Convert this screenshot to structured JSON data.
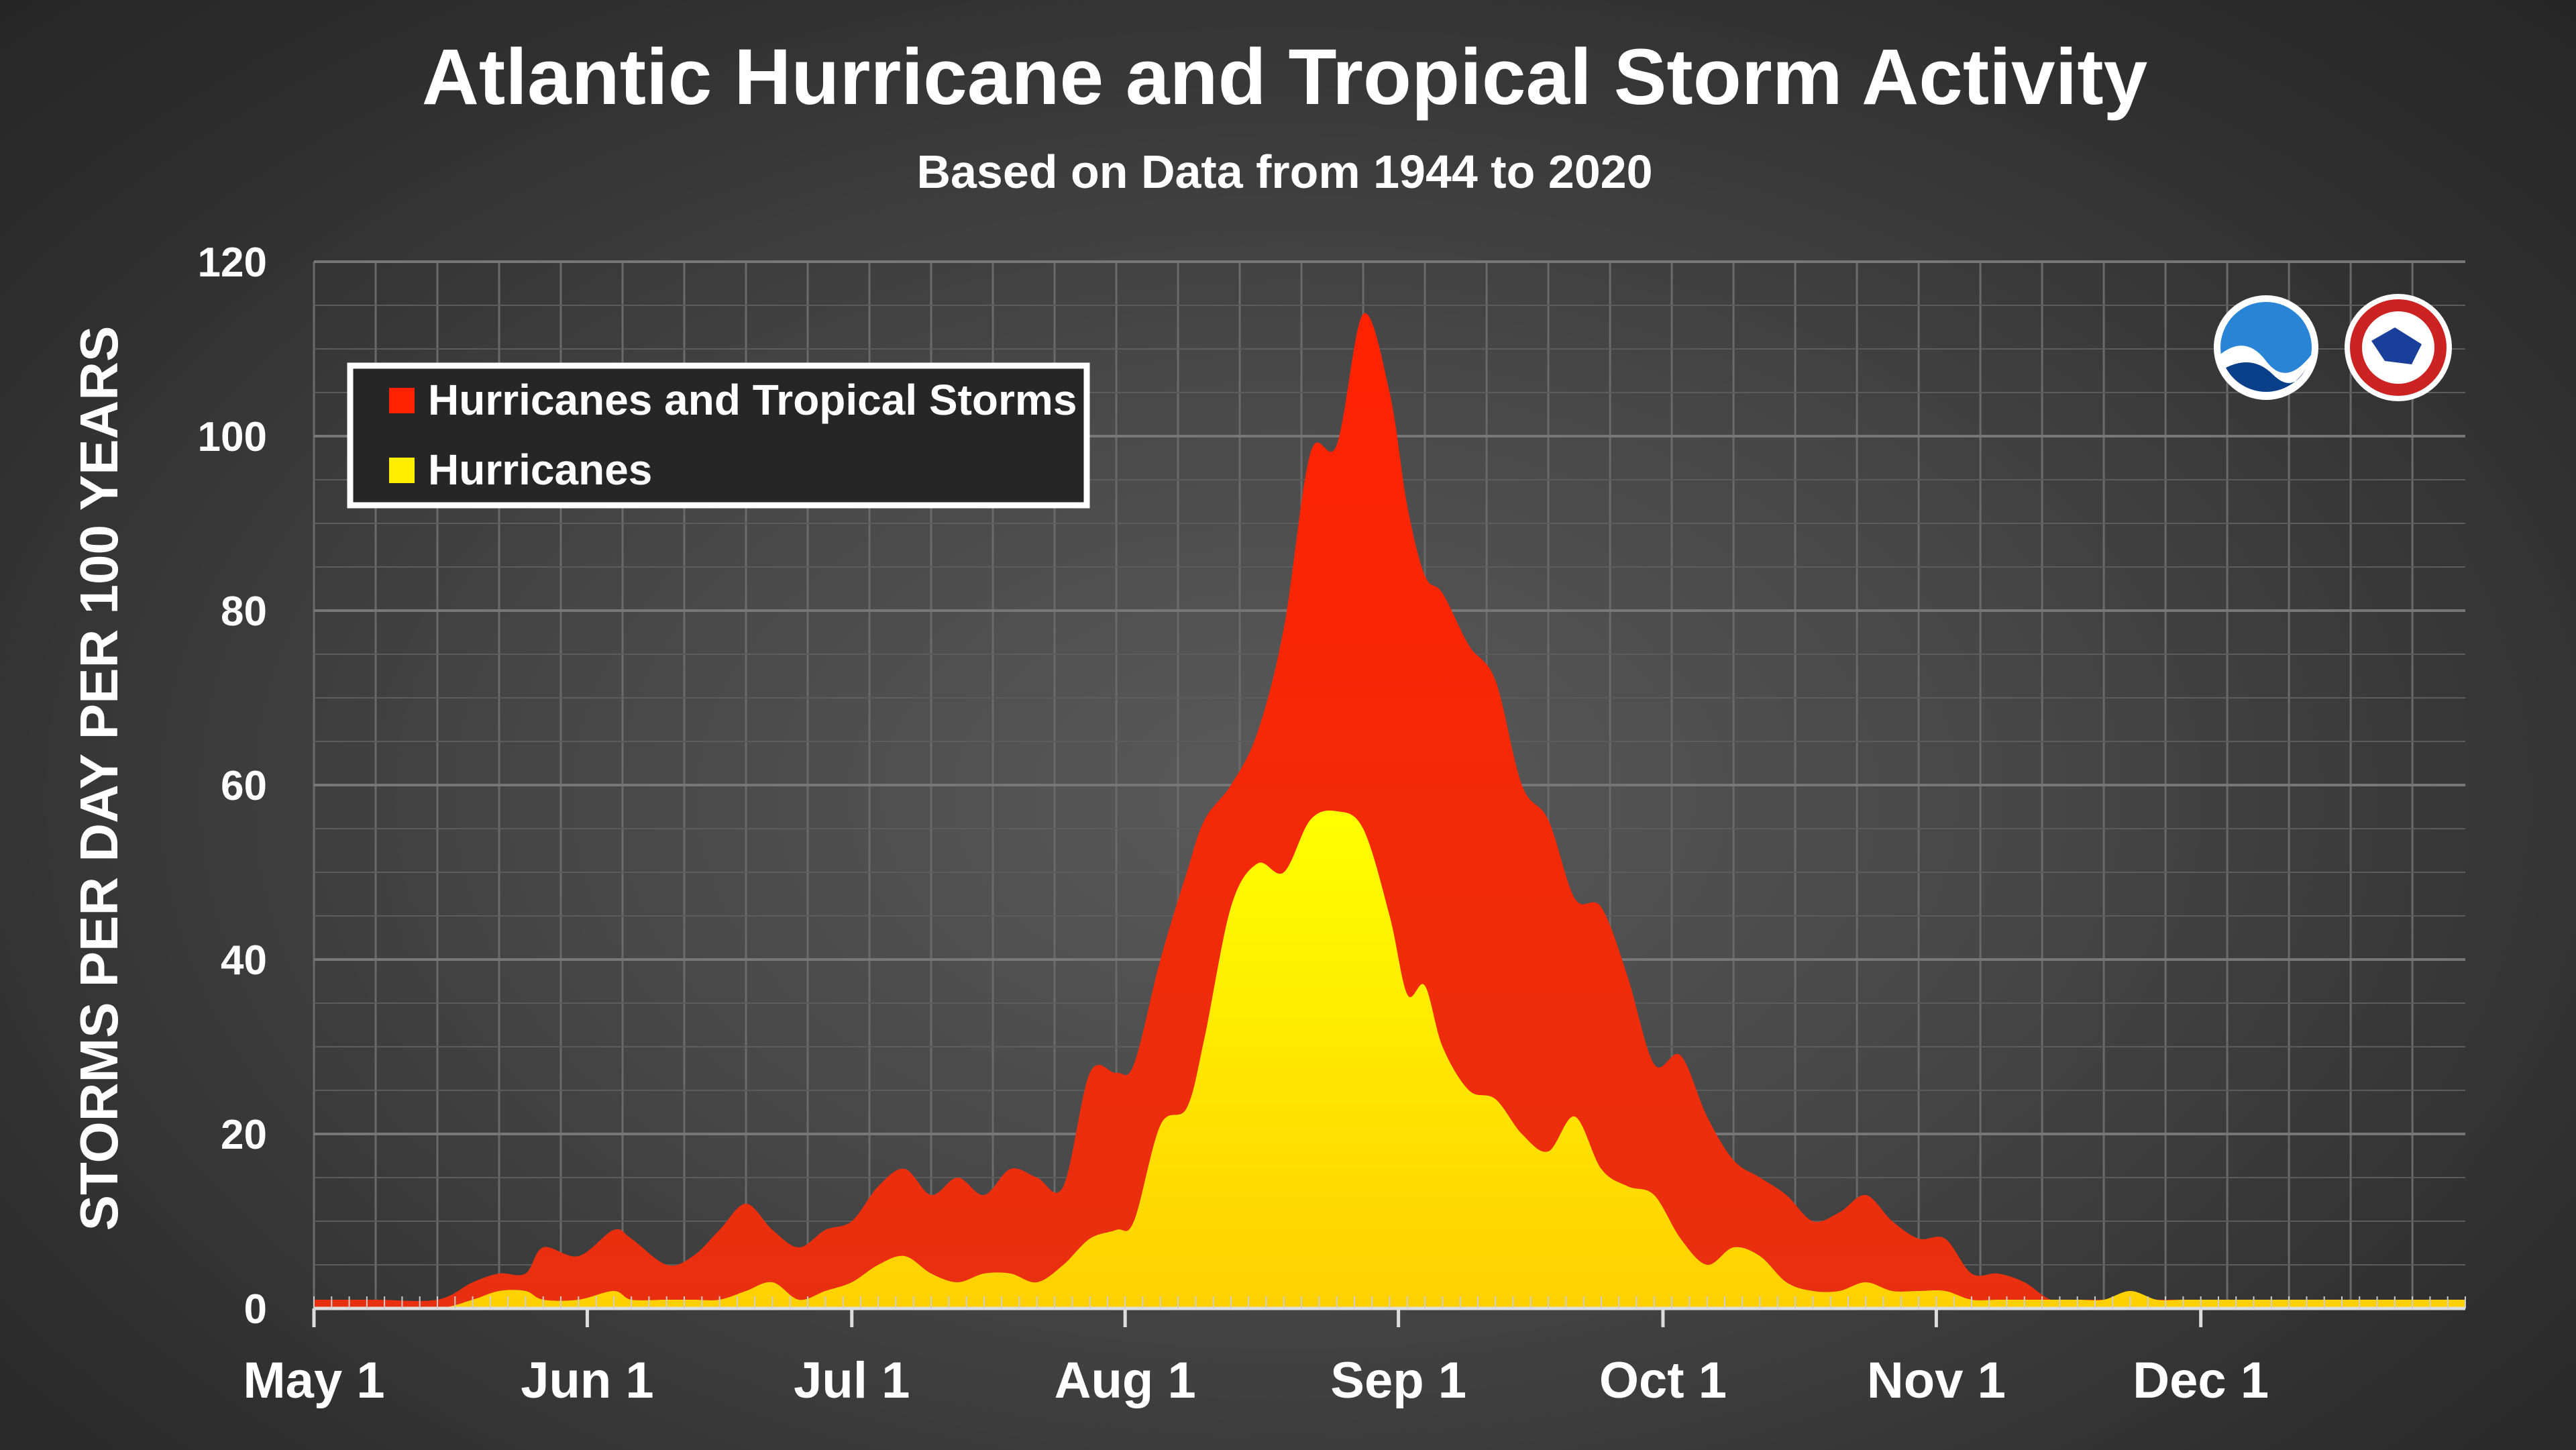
{
  "chart_data": {
    "type": "area",
    "title": "Atlantic Hurricane and Tropical Storm Activity",
    "subtitle": "Based on Data from 1944 to 2020",
    "xlabel": "",
    "ylabel": "STORMS PER DAY PER 100 YEARS",
    "ylim": [
      0,
      120
    ],
    "yticks": [
      0,
      20,
      40,
      60,
      80,
      100,
      120
    ],
    "xlim": [
      "May 1",
      "Dec 31"
    ],
    "xticks": [
      {
        "label": "May 1",
        "day": 0
      },
      {
        "label": "Jun 1",
        "day": 31
      },
      {
        "label": "Jul 1",
        "day": 61
      },
      {
        "label": "Aug 1",
        "day": 92
      },
      {
        "label": "Sep 1",
        "day": 123
      },
      {
        "label": "Oct 1",
        "day": 153
      },
      {
        "label": "Nov 1",
        "day": 184
      },
      {
        "label": "Dec 1",
        "day": 214
      }
    ],
    "grid": true,
    "legend_position": "top-left",
    "x": [
      "May 1",
      "May 8",
      "May 15",
      "May 19",
      "May 22",
      "May 25",
      "May 27",
      "May 31",
      "Jun 4",
      "Jun 6",
      "Jun 10",
      "Jun 13",
      "Jun 16",
      "Jun 19",
      "Jun 22",
      "Jun 25",
      "Jun 28",
      "Jul 1",
      "Jul 4",
      "Jul 7",
      "Jul 10",
      "Jul 13",
      "Jul 16",
      "Jul 19",
      "Jul 22",
      "Jul 25",
      "Jul 28",
      "Jul 31",
      "Aug 2",
      "Aug 5",
      "Aug 8",
      "Aug 10",
      "Aug 13",
      "Aug 16",
      "Aug 19",
      "Aug 22",
      "Aug 25",
      "Aug 28",
      "Aug 31",
      "Sep 2",
      "Sep 4",
      "Sep 6",
      "Sep 9",
      "Sep 12",
      "Sep 15",
      "Sep 18",
      "Sep 21",
      "Sep 24",
      "Sep 27",
      "Sep 30",
      "Oct 3",
      "Oct 6",
      "Oct 9",
      "Oct 12",
      "Oct 15",
      "Oct 18",
      "Oct 21",
      "Oct 24",
      "Oct 27",
      "Oct 30",
      "Nov 2",
      "Nov 5",
      "Nov 8",
      "Nov 11",
      "Nov 14",
      "Nov 17",
      "Nov 20",
      "Nov 23",
      "Nov 26",
      "Nov 29",
      "Dec 2",
      "Dec 5",
      "Dec 8",
      "Dec 11",
      "Dec 14",
      "Dec 17",
      "Dec 20",
      "Dec 23",
      "Dec 26",
      "Dec 31"
    ],
    "series": [
      {
        "name": "Hurricanes and Tropical Storms",
        "color": "#ff2200",
        "values": [
          1,
          1,
          1,
          3,
          4,
          4,
          7,
          6,
          9,
          8,
          5,
          6,
          9,
          12,
          9,
          7,
          9,
          10,
          14,
          16,
          13,
          15,
          13,
          16,
          15,
          14,
          27,
          27,
          28,
          40,
          50,
          56,
          60,
          66,
          78,
          98,
          99,
          114,
          105,
          92,
          84,
          82,
          76,
          72,
          60,
          56,
          47,
          46,
          38,
          28,
          29,
          22,
          17,
          15,
          13,
          10,
          11,
          13,
          10,
          8,
          8,
          4,
          4,
          3,
          1,
          1,
          1,
          1,
          1,
          1,
          1,
          1,
          1,
          1,
          1,
          1,
          1,
          1,
          1,
          1
        ],
        "color_hex": "#ff2200"
      },
      {
        "name": "Hurricanes",
        "color": "#ffee00",
        "values": [
          0,
          0,
          0,
          1,
          2,
          2,
          1,
          1,
          2,
          1,
          1,
          1,
          1,
          2,
          3,
          1,
          2,
          3,
          5,
          6,
          4,
          3,
          4,
          4,
          3,
          5,
          8,
          9,
          10,
          21,
          23,
          31,
          46,
          51,
          50,
          56,
          57,
          55,
          45,
          36,
          37,
          30,
          25,
          24,
          20,
          18,
          22,
          16,
          14,
          13,
          8,
          5,
          7,
          6,
          3,
          2,
          2,
          3,
          2,
          2,
          2,
          1,
          1,
          1,
          1,
          1,
          1,
          2,
          1,
          1,
          1,
          1,
          1,
          1,
          1,
          1,
          1,
          1,
          1,
          1
        ],
        "color_hex": "#ffee00"
      }
    ]
  }
}
